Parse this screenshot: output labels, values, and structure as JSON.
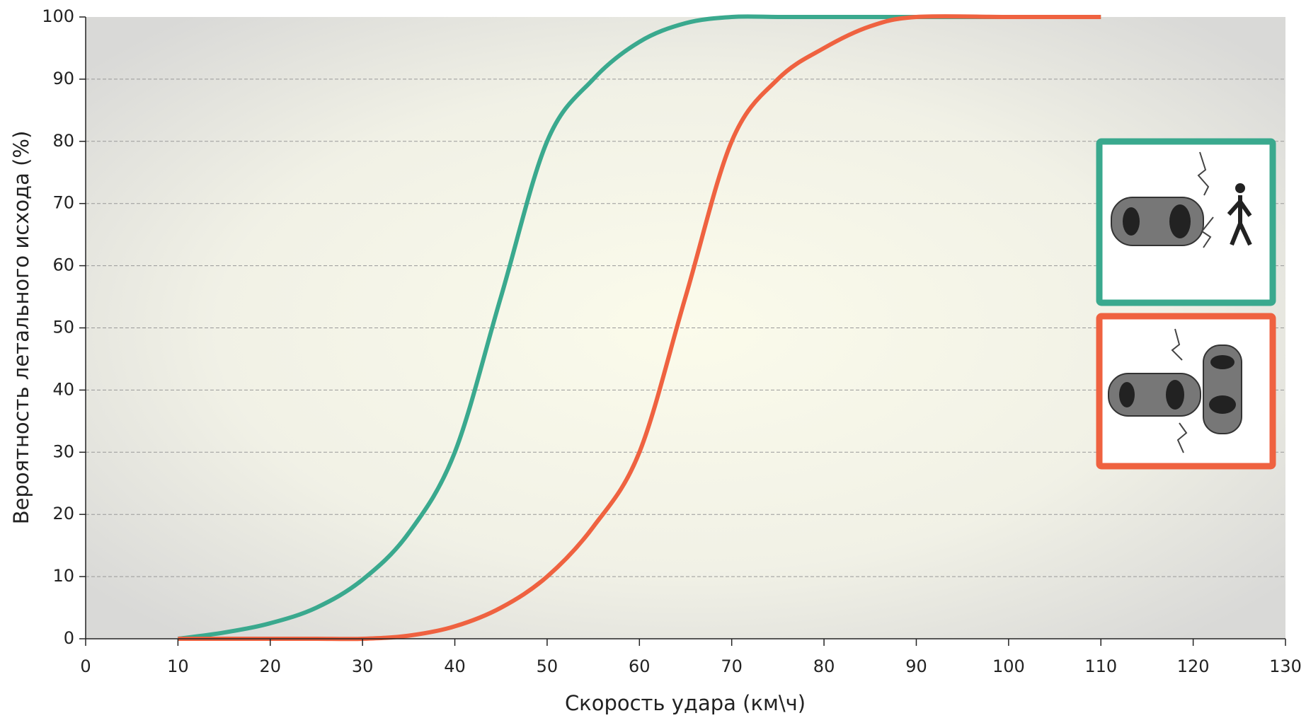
{
  "chart_data": {
    "type": "line",
    "xlabel": "Скорость удара (км\\ч)",
    "ylabel": "Вероятность летального исхода (%)",
    "xlim": [
      0,
      130
    ],
    "xticks": [
      0,
      10,
      20,
      30,
      40,
      50,
      60,
      70,
      80,
      90,
      100,
      110,
      120,
      130
    ],
    "ylim": [
      0,
      100
    ],
    "yticks": [
      0,
      10,
      20,
      30,
      40,
      50,
      60,
      70,
      80,
      90,
      100
    ],
    "grid": true,
    "series": [
      {
        "color": "#3aa98e",
        "x": [
          10,
          15,
          20,
          25,
          30,
          35,
          40,
          45,
          50,
          55,
          60,
          65,
          70,
          75,
          80,
          90,
          100,
          110
        ],
        "values": [
          0,
          1,
          2.5,
          5,
          9.5,
          17,
          30,
          55,
          80,
          90,
          96,
          99,
          100,
          100,
          100,
          100,
          100,
          100
        ]
      },
      {
        "color": "#ef6240",
        "x": [
          10,
          20,
          25,
          30,
          35,
          40,
          45,
          50,
          55,
          60,
          65,
          70,
          75,
          80,
          85,
          90,
          100,
          110
        ],
        "values": [
          0,
          0,
          0,
          0,
          0.5,
          2,
          5,
          10,
          18,
          30,
          55,
          80,
          90,
          95,
          98.5,
          100,
          100,
          100
        ]
      }
    ]
  }
}
